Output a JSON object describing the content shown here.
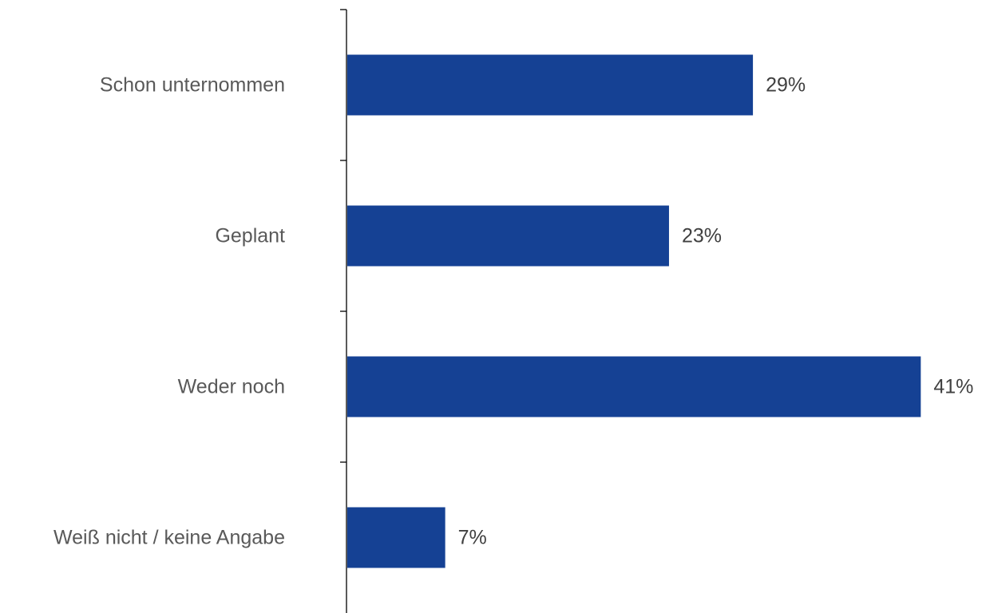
{
  "chart_data": {
    "type": "bar",
    "orientation": "horizontal",
    "categories": [
      "Schon unternommen",
      "Geplant",
      "Weder noch",
      "Weiß nicht / keine Angabe"
    ],
    "values": [
      29,
      23,
      41,
      7
    ],
    "value_labels": [
      "29%",
      "23%",
      "41%",
      "7%"
    ],
    "unit": "%",
    "xlim": [
      0,
      41
    ],
    "bar_color": "#154194",
    "grid": false,
    "legend": "none"
  }
}
